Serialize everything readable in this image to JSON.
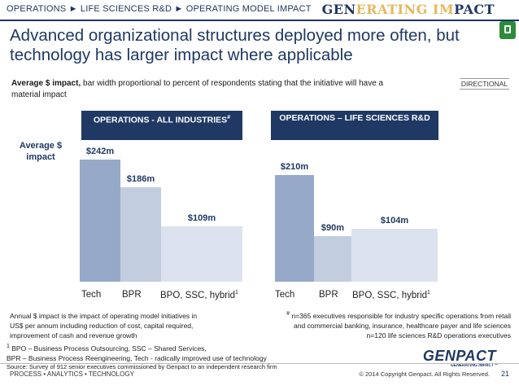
{
  "header": {
    "breadcrumb": "OPERATIONS ► LIFE SCIENCES R&D ► OPERATING MODEL IMPACT",
    "brand_part1": "GEN",
    "brand_part2": "ERATING IM",
    "brand_part3": "PACT",
    "tag_icon": "tag-icon"
  },
  "slide": {
    "headline": "Advanced organizational structures deployed more often, but technology has larger impact where applicable",
    "subtitle_bold": "Average $ impact,",
    "subtitle_rest": " bar width proportional to percent of respondents stating that the initiative will have a material impact",
    "directional": "DIRECTIONAL",
    "avg_label": "Average $ impact"
  },
  "chart_data": [
    {
      "type": "bar",
      "title": "OPERATIONS - ALL INDUSTRIES",
      "title_marker": "#",
      "ylabel": "Average $ impact",
      "categories": [
        "Tech",
        "BPR",
        "BPO, SSC, hybrid"
      ],
      "category_superscripts": [
        "",
        "",
        "1"
      ],
      "values": [
        242,
        186,
        109
      ],
      "labels": [
        "$242m",
        "$186m",
        "$109m"
      ],
      "unit": "$m",
      "ylim": [
        0,
        260
      ]
    },
    {
      "type": "bar",
      "title": "OPERATIONS – LIFE SCIENCES R&D",
      "title_marker": "",
      "ylabel": "Average $ impact",
      "categories": [
        "Tech",
        "BPR",
        "BPO, SSC, hybrid"
      ],
      "category_superscripts": [
        "",
        "",
        "1"
      ],
      "values": [
        210,
        90,
        104
      ],
      "labels": [
        "$210m",
        "$90m",
        "$104m"
      ],
      "unit": "$m",
      "ylim": [
        0,
        260
      ]
    }
  ],
  "notes": {
    "annual_line1": "Annual $ impact is the impact of operating model initiatives in",
    "annual_line2": "US$ per annum including reduction of cost, capital required,",
    "annual_line3": "improvement of cash and revenue growth",
    "footnote_mark": "1",
    "footnote_line1": " BPO – Business Process Outsourcing, SSC – Shared Services,",
    "footnote_line2": "BPR – Business Process Reengineering, Tech - radically improved use of technology",
    "source": "Source: Survey of 912 senior executives commissioned by Genpact to an independent research firm",
    "hash_mark": "#",
    "hash_line1": " n=365 executives responsible for industry specific operations from retail",
    "hash_line2": "and commercial banking, insurance, healthcare payer and life sciences",
    "n120": "n=120 life sciences R&D operations executives"
  },
  "footer": {
    "left": "PROCESS • ANALYTICS • TECHNOLOGY",
    "right": "© 2014 Copyright Genpact. All Rights Reserved.",
    "page": "21",
    "logo": "GENPACT",
    "logo_tag": "GENERATING IMPACT™"
  },
  "colors": {
    "navy": "#1f3864",
    "bar_tech": "#97a9c9",
    "bar_bpr": "#c3cde0",
    "bar_bpo": "#dce2ee"
  }
}
